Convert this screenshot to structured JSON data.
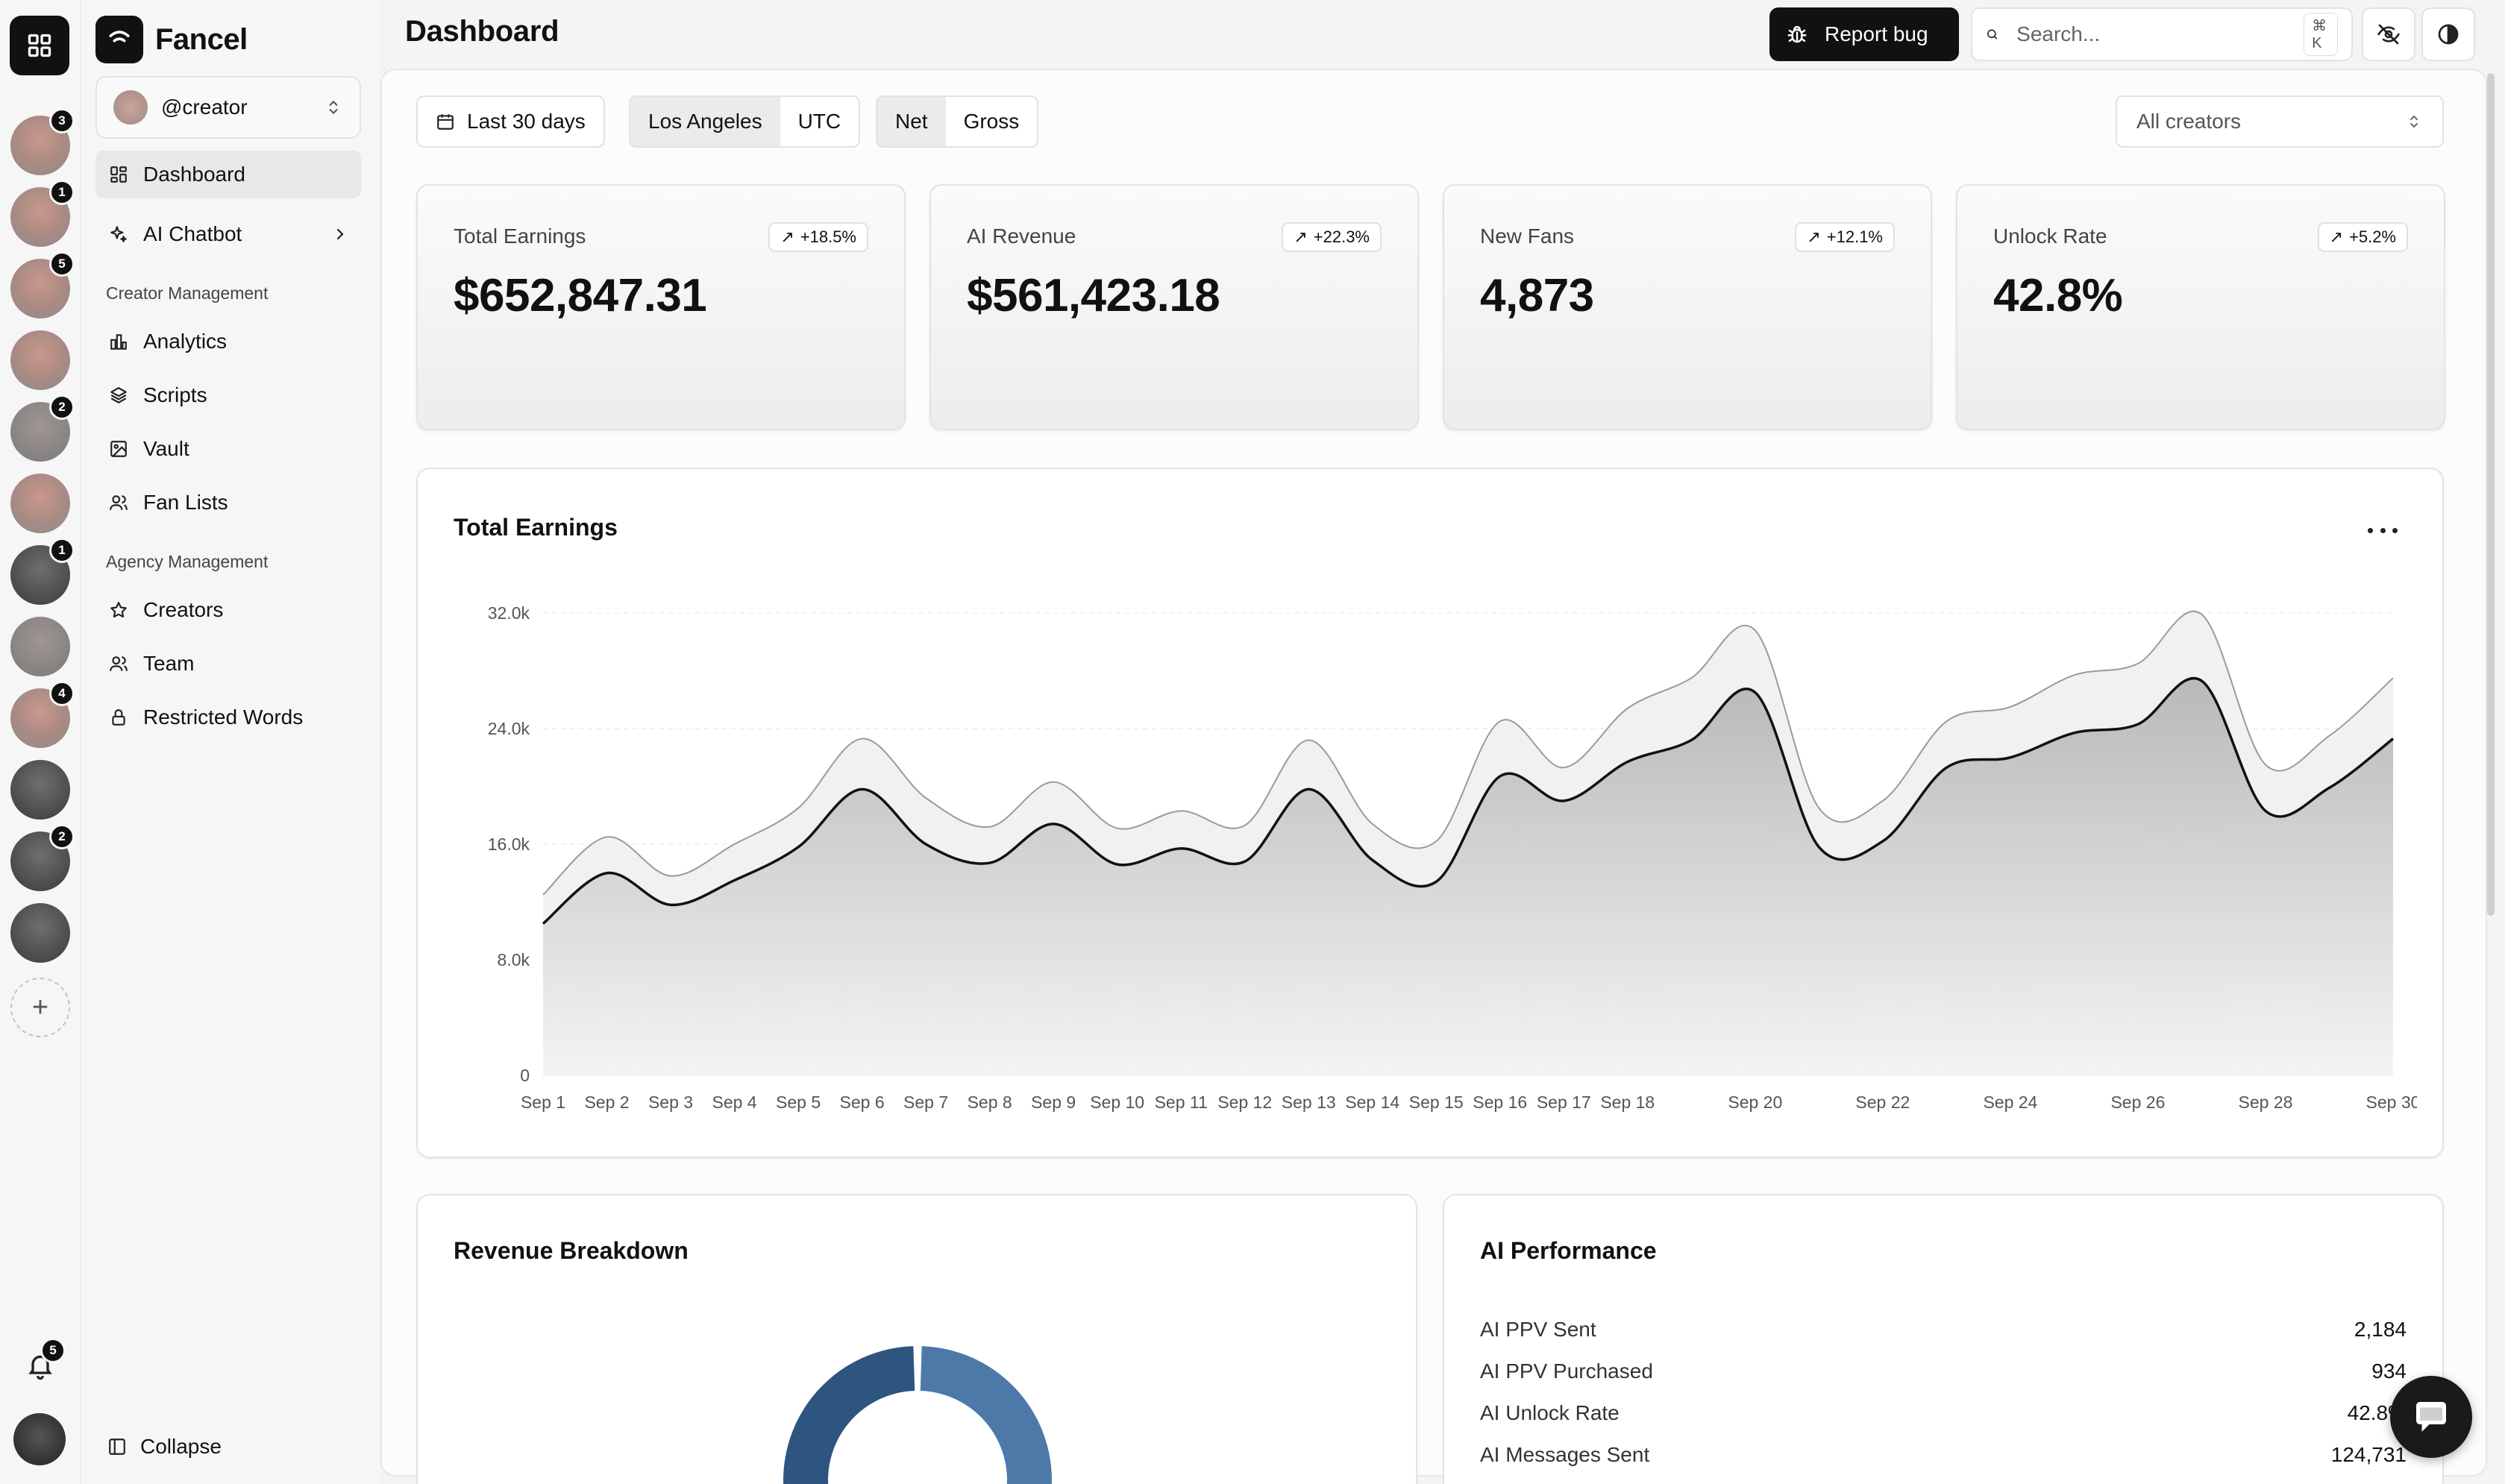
{
  "app": {
    "name": "Fancel"
  },
  "rail": {
    "avatars": [
      {
        "badge": "3",
        "shade": "warm"
      },
      {
        "badge": "1",
        "shade": "warm"
      },
      {
        "badge": "5",
        "shade": "warm"
      },
      {
        "badge": "",
        "shade": "warm"
      },
      {
        "badge": "2",
        "shade": "gray"
      },
      {
        "badge": "",
        "shade": "warm"
      },
      {
        "badge": "1",
        "shade": "dark"
      },
      {
        "badge": "",
        "shade": "gray"
      },
      {
        "badge": "4",
        "shade": "warm"
      },
      {
        "badge": "",
        "shade": "dark"
      },
      {
        "badge": "2",
        "shade": "dark"
      },
      {
        "badge": "",
        "shade": "dark"
      }
    ],
    "add_label": "+",
    "notifications_count": "5"
  },
  "sidebar": {
    "account": "@creator",
    "main_items": [
      {
        "label": "Dashboard",
        "icon": "dashboard-icon",
        "active": true
      },
      {
        "label": "AI Chatbot",
        "icon": "sparkles-icon",
        "has_submenu": true
      }
    ],
    "creator_section": {
      "label": "Creator Management",
      "items": [
        {
          "label": "Analytics",
          "icon": "bar-chart-icon"
        },
        {
          "label": "Scripts",
          "icon": "layers-icon"
        },
        {
          "label": "Vault",
          "icon": "image-icon"
        },
        {
          "label": "Fan Lists",
          "icon": "users-icon"
        }
      ]
    },
    "agency_section": {
      "label": "Agency Management",
      "items": [
        {
          "label": "Creators",
          "icon": "star-icon"
        },
        {
          "label": "Team",
          "icon": "users-icon"
        },
        {
          "label": "Restricted Words",
          "icon": "lock-icon"
        }
      ]
    },
    "collapse_label": "Collapse"
  },
  "header": {
    "title": "Dashboard",
    "report_bug": "Report bug",
    "search_placeholder": "Search...",
    "search_shortcut": "⌘ K"
  },
  "filters": {
    "date_range": "Last 30 days",
    "timezone_options": [
      "Los Angeles",
      "UTC"
    ],
    "timezone_selected": "Los Angeles",
    "mode_options": [
      "Net",
      "Gross"
    ],
    "mode_selected": "Net",
    "creator_select": "All creators"
  },
  "stats": [
    {
      "label": "Total Earnings",
      "value": "$652,847.31",
      "delta": "+18.5%"
    },
    {
      "label": "AI Revenue",
      "value": "$561,423.18",
      "delta": "+22.3%"
    },
    {
      "label": "New Fans",
      "value": "4,873",
      "delta": "+12.1%"
    },
    {
      "label": "Unlock Rate",
      "value": "42.8%",
      "delta": "+5.2%"
    }
  ],
  "earnings_card": {
    "title": "Total Earnings"
  },
  "chart_data": {
    "type": "area",
    "title": "Total Earnings",
    "x": [
      "Sep 1",
      "Sep 2",
      "Sep 3",
      "Sep 4",
      "Sep 5",
      "Sep 6",
      "Sep 7",
      "Sep 8",
      "Sep 9",
      "Sep 10",
      "Sep 11",
      "Sep 12",
      "Sep 13",
      "Sep 14",
      "Sep 15",
      "Sep 16",
      "Sep 17",
      "Sep 18",
      "Sep 19",
      "Sep 20",
      "Sep 21",
      "Sep 22",
      "Sep 23",
      "Sep 24",
      "Sep 25",
      "Sep 26",
      "Sep 27",
      "Sep 28",
      "Sep 29",
      "Sep 30"
    ],
    "x_tick_labels": [
      "Sep 1",
      "Sep 2",
      "Sep 3",
      "Sep 4",
      "Sep 5",
      "Sep 6",
      "Sep 7",
      "Sep 8",
      "Sep 9",
      "Sep 10",
      "Sep 11",
      "Sep 12",
      "Sep 13",
      "Sep 14",
      "Sep 15",
      "Sep 16",
      "Sep 17",
      "Sep 18",
      "Sep 20",
      "Sep 22",
      "Sep 24",
      "Sep 26",
      "Sep 28",
      "Sep 30"
    ],
    "y_ticks": [
      "0",
      "8.0k",
      "16.0k",
      "24.0k",
      "32.0k"
    ],
    "ylim": [
      0,
      32000
    ],
    "grid": true,
    "series": [
      {
        "values": [
          12500,
          16500,
          13800,
          16000,
          18500,
          23300,
          19200,
          17200,
          20300,
          17100,
          18300,
          17300,
          23200,
          17400,
          16200,
          24500,
          21300,
          25400,
          27500,
          30800,
          18500,
          19000,
          24500,
          25500,
          27700,
          28500,
          31900,
          21500,
          23500,
          27500
        ]
      },
      {
        "values": [
          10500,
          14000,
          11800,
          13500,
          15800,
          19800,
          16000,
          14700,
          17400,
          14600,
          15700,
          14800,
          19800,
          14900,
          13400,
          20700,
          19000,
          21700,
          23200,
          26500,
          15800,
          16200,
          21300,
          22000,
          23700,
          24300,
          27300,
          18300,
          19900,
          23300
        ]
      }
    ]
  },
  "revenue_card": {
    "title": "Revenue Breakdown",
    "donut_colors": [
      "#2e5580",
      "#4d79a8"
    ]
  },
  "ai_card": {
    "title": "AI Performance",
    "rows": [
      {
        "label": "AI PPV Sent",
        "value": "2,184"
      },
      {
        "label": "AI PPV Purchased",
        "value": "934"
      },
      {
        "label": "AI Unlock Rate",
        "value": "42.8%"
      },
      {
        "label": "AI Messages Sent",
        "value": "124,731"
      }
    ]
  }
}
